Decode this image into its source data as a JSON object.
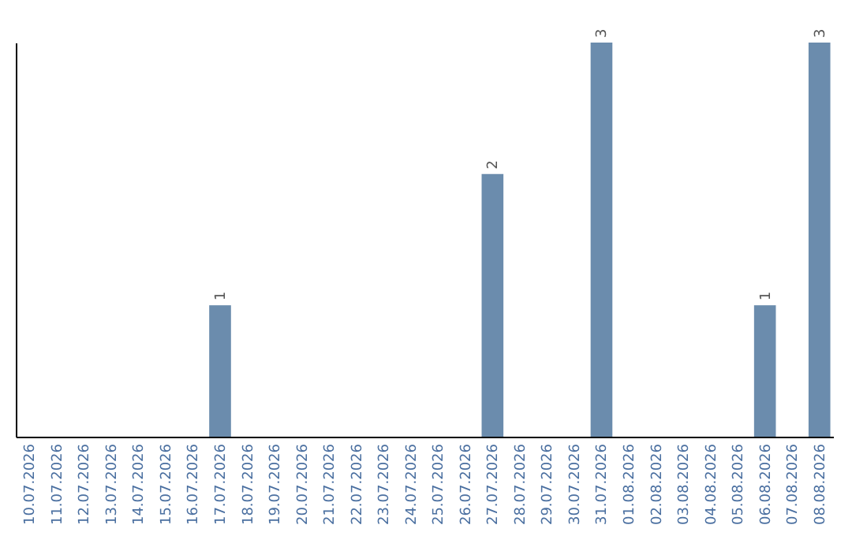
{
  "chart_data": {
    "type": "bar",
    "categories": [
      "10.07.2026",
      "11.07.2026",
      "12.07.2026",
      "13.07.2026",
      "14.07.2026",
      "15.07.2026",
      "16.07.2026",
      "17.07.2026",
      "18.07.2026",
      "19.07.2026",
      "20.07.2026",
      "21.07.2026",
      "22.07.2026",
      "23.07.2026",
      "24.07.2026",
      "25.07.2026",
      "26.07.2026",
      "27.07.2026",
      "28.07.2026",
      "29.07.2026",
      "30.07.2026",
      "31.07.2026",
      "01.08.2026",
      "02.08.2026",
      "03.08.2026",
      "04.08.2026",
      "05.08.2026",
      "06.08.2026",
      "07.08.2026",
      "08.08.2026"
    ],
    "values": [
      null,
      null,
      null,
      null,
      null,
      null,
      null,
      1,
      null,
      null,
      null,
      null,
      null,
      null,
      null,
      null,
      null,
      2,
      null,
      null,
      null,
      3,
      null,
      null,
      null,
      null,
      null,
      1,
      null,
      3
    ],
    "color": "#6b8cad",
    "ylim": [
      0,
      3
    ],
    "data_labels": true,
    "tick_labels": "x",
    "grid": false
  }
}
